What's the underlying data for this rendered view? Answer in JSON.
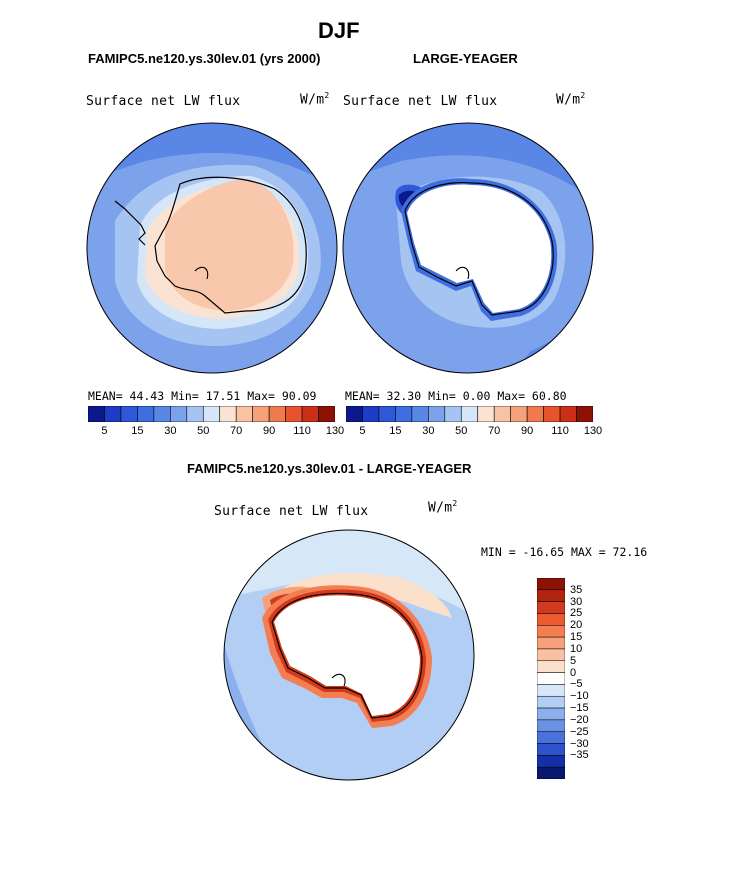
{
  "title": "DJF",
  "panel_left": {
    "case": "FAMIPC5.ne120.ys.30lev.01 (yrs 2000)",
    "variable": "Surface net LW flux",
    "units": "W/m",
    "units_sup": "2",
    "stats": "MEAN=  44.43  Min=  17.51  Max=  90.09"
  },
  "panel_right": {
    "case": "LARGE-YEAGER",
    "variable": "Surface net LW flux",
    "units": "W/m",
    "units_sup": "2",
    "stats": "MEAN=  32.30  Min=   0.00  Max=  60.80"
  },
  "abs_colorbar": {
    "colors": [
      "#0a1a8c",
      "#1f3cc8",
      "#2f58d8",
      "#3f6ee0",
      "#5a86e6",
      "#7ca2ec",
      "#a6c4f2",
      "#d4e6f8",
      "#fbe3d4",
      "#f8c3a4",
      "#f5a17a",
      "#f07a50",
      "#e8532d",
      "#cc2f18",
      "#8c1206"
    ],
    "labels": [
      "5",
      "15",
      "30",
      "50",
      "70",
      "90",
      "110",
      "130"
    ]
  },
  "diff_title": "FAMIPC5.ne120.ys.30lev.01 - LARGE-YEAGER",
  "panel_diff": {
    "variable": "Surface net LW flux",
    "units": "W/m",
    "units_sup": "2",
    "minmax": "MIN = -16.65 MAX =  72.16"
  },
  "diff_colorbar": {
    "colors": [
      "#8c1206",
      "#b02410",
      "#d13a1c",
      "#ec5a30",
      "#f47e52",
      "#f7a07a",
      "#f9c0a2",
      "#fbe0cc",
      "#ffffff",
      "#d6e8f8",
      "#b2cef4",
      "#8cb0ec",
      "#6a92e4",
      "#4a72dc",
      "#2c52cc",
      "#1430a8",
      "#08186e"
    ],
    "labels": [
      "35",
      "30",
      "25",
      "20",
      "15",
      "10",
      "5",
      "0",
      "−5",
      "−10",
      "−15",
      "−20",
      "−25",
      "−30",
      "−35"
    ]
  }
}
